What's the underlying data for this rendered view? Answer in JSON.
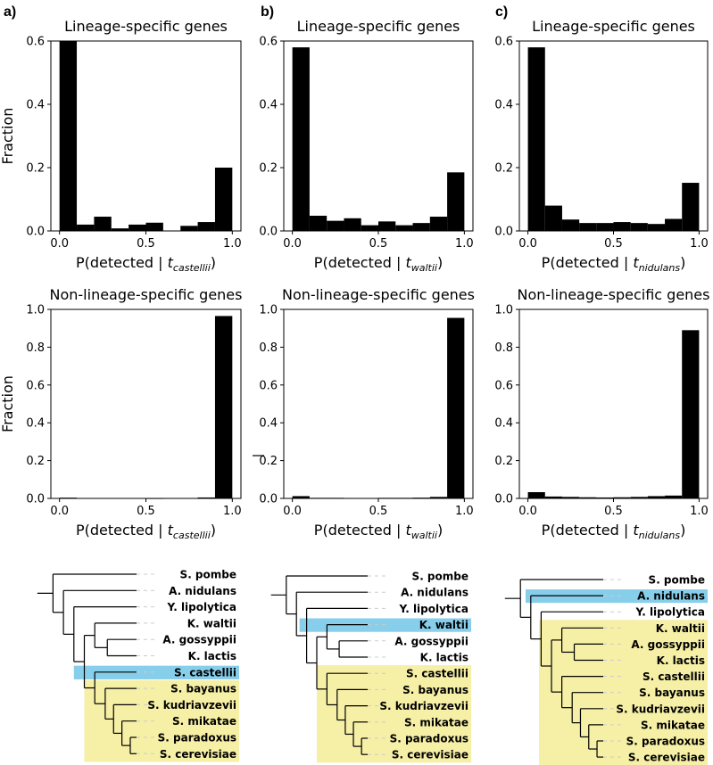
{
  "panel_labels": [
    "a)",
    "b)",
    "c)"
  ],
  "chart_data": [
    {
      "type": "bar",
      "panel": "a",
      "title": "Lineage-specific genes",
      "xlabel_prefix": "P(detected | ",
      "xlabel_var": "t",
      "xlabel_sub": "castellii",
      "xlabel_suffix": ")",
      "ylabel": "Fraction",
      "xlim": [
        -0.05,
        1.05
      ],
      "ylim": [
        0,
        0.6
      ],
      "yticks": [
        "0.0",
        "0.2",
        "0.4",
        "0.6"
      ],
      "xticks": [
        "0.0",
        "0.5",
        "1.0"
      ],
      "bin_edges": [
        0,
        0.1,
        0.2,
        0.3,
        0.4,
        0.5,
        0.6,
        0.7,
        0.8,
        0.9,
        1.0
      ],
      "values": [
        0.6,
        0.02,
        0.045,
        0.008,
        0.02,
        0.026,
        0.0,
        0.016,
        0.028,
        0.2
      ]
    },
    {
      "type": "bar",
      "panel": "b",
      "title": "Lineage-specific genes",
      "xlabel_prefix": "P(detected | ",
      "xlabel_var": "t",
      "xlabel_sub": "waltii",
      "xlabel_suffix": ")",
      "ylabel": "",
      "xlim": [
        -0.05,
        1.05
      ],
      "ylim": [
        0,
        0.6
      ],
      "yticks": [
        "0.0",
        "0.2",
        "0.4",
        "0.6"
      ],
      "xticks": [
        "0.0",
        "0.5",
        "1.0"
      ],
      "bin_edges": [
        0,
        0.1,
        0.2,
        0.3,
        0.4,
        0.5,
        0.6,
        0.7,
        0.8,
        0.9,
        1.0
      ],
      "values": [
        0.58,
        0.048,
        0.032,
        0.04,
        0.018,
        0.03,
        0.018,
        0.025,
        0.045,
        0.185
      ]
    },
    {
      "type": "bar",
      "panel": "c",
      "title": "Lineage-specific genes",
      "xlabel_prefix": "P(detected | ",
      "xlabel_var": "t",
      "xlabel_sub": "nidulans",
      "xlabel_suffix": ")",
      "ylabel": "",
      "xlim": [
        -0.05,
        1.05
      ],
      "ylim": [
        0,
        0.6
      ],
      "yticks": [
        "0.0",
        "0.2",
        "0.4",
        "0.6"
      ],
      "xticks": [
        "0.0",
        "0.5",
        "1.0"
      ],
      "bin_edges": [
        0,
        0.1,
        0.2,
        0.3,
        0.4,
        0.5,
        0.6,
        0.7,
        0.8,
        0.9,
        1.0
      ],
      "values": [
        0.58,
        0.08,
        0.036,
        0.025,
        0.025,
        0.028,
        0.025,
        0.022,
        0.038,
        0.152
      ]
    },
    {
      "type": "bar",
      "panel": "a",
      "title": "Non-lineage-specific genes",
      "xlabel_prefix": "P(detected | ",
      "xlabel_var": "t",
      "xlabel_sub": "castellii",
      "xlabel_suffix": ")",
      "ylabel": "Fraction",
      "xlim": [
        -0.05,
        1.05
      ],
      "ylim": [
        0,
        1.0
      ],
      "yticks": [
        "0.0",
        "0.2",
        "0.4",
        "0.6",
        "0.8",
        "1.0"
      ],
      "xticks": [
        "0.0",
        "0.5",
        "1.0"
      ],
      "bin_edges": [
        0,
        0.1,
        0.2,
        0.3,
        0.4,
        0.5,
        0.6,
        0.7,
        0.8,
        0.9,
        1.0
      ],
      "values": [
        0.004,
        0.0,
        0.0,
        0.0,
        0.0,
        0.001,
        0.002,
        0.002,
        0.005,
        0.965
      ]
    },
    {
      "type": "bar",
      "panel": "b",
      "title": "Non-lineage-specific genes",
      "xlabel_prefix": "P(detected | ",
      "xlabel_var": "t",
      "xlabel_sub": "waltii",
      "xlabel_suffix": ")",
      "ylabel": "",
      "xlim": [
        -0.05,
        1.05
      ],
      "ylim": [
        0,
        1.0
      ],
      "yticks": [
        "0.0",
        "0.2",
        "0.4",
        "0.6",
        "0.8",
        "1.0"
      ],
      "xticks": [
        "0.0",
        "0.5",
        "1.0"
      ],
      "bin_edges": [
        0,
        0.1,
        0.2,
        0.3,
        0.4,
        0.5,
        0.6,
        0.7,
        0.8,
        0.9,
        1.0
      ],
      "values": [
        0.012,
        0.003,
        0.003,
        0.002,
        0.002,
        0.003,
        0.003,
        0.004,
        0.008,
        0.955
      ]
    },
    {
      "type": "bar",
      "panel": "c",
      "title": "Non-lineage-specific genes",
      "xlabel_prefix": "P(detected | ",
      "xlabel_var": "t",
      "xlabel_sub": "nidulans",
      "xlabel_suffix": ")",
      "ylabel": "",
      "xlim": [
        -0.05,
        1.05
      ],
      "ylim": [
        0,
        1.0
      ],
      "yticks": [
        "0.0",
        "0.2",
        "0.4",
        "0.6",
        "0.8",
        "1.0"
      ],
      "xticks": [
        "0.0",
        "0.5",
        "1.0"
      ],
      "bin_edges": [
        0,
        0.1,
        0.2,
        0.3,
        0.4,
        0.5,
        0.6,
        0.7,
        0.8,
        0.9,
        1.0
      ],
      "values": [
        0.033,
        0.01,
        0.008,
        0.006,
        0.005,
        0.006,
        0.008,
        0.012,
        0.015,
        0.89
      ]
    }
  ],
  "trees": [
    {
      "panel": "a",
      "species": [
        "S. pombe",
        "A. nidulans",
        "Y. lipolytica",
        "K. waltii",
        "A. gossyppii",
        "K. lactis",
        "S. castellii",
        "S. bayanus",
        "S. kudriavzevii",
        "S. mikatae",
        "S. paradoxus",
        "S. cerevisiae"
      ],
      "focal": "S. castellii",
      "lineage_specific_group": [
        "S. bayanus",
        "S. kudriavzevii",
        "S. mikatae",
        "S. paradoxus",
        "S. cerevisiae"
      ]
    },
    {
      "panel": "b",
      "species": [
        "S. pombe",
        "A. nidulans",
        "Y. lipolytica",
        "K. waltii",
        "A. gossyppii",
        "K. lactis",
        "S. castellii",
        "S. bayanus",
        "S. kudriavzevii",
        "S. mikatae",
        "S. paradoxus",
        "S. cerevisiae"
      ],
      "focal": "K. waltii",
      "lineage_specific_group": [
        "S. castellii",
        "S. bayanus",
        "S. kudriavzevii",
        "S. mikatae",
        "S. paradoxus",
        "S. cerevisiae"
      ]
    },
    {
      "panel": "c",
      "species": [
        "S. pombe",
        "A. nidulans",
        "Y. lipolytica",
        "K. waltii",
        "A. gossyppii",
        "K. lactis",
        "S. castellii",
        "S. bayanus",
        "S. kudriavzevii",
        "S. mikatae",
        "S. paradoxus",
        "S. cerevisiae"
      ],
      "focal": "A. nidulans",
      "lineage_specific_group": [
        "K. waltii",
        "A. gossyppii",
        "K. lactis",
        "S. castellii",
        "S. bayanus",
        "S. kudriavzevii",
        "S. mikatae",
        "S. paradoxus",
        "S. cerevisiae"
      ]
    }
  ],
  "colors": {
    "bar": "#000000",
    "focal_highlight": "#87ceeb",
    "group_highlight": "#f6efa6",
    "tree_line": "#000000",
    "guide_line": "#cccccc"
  }
}
